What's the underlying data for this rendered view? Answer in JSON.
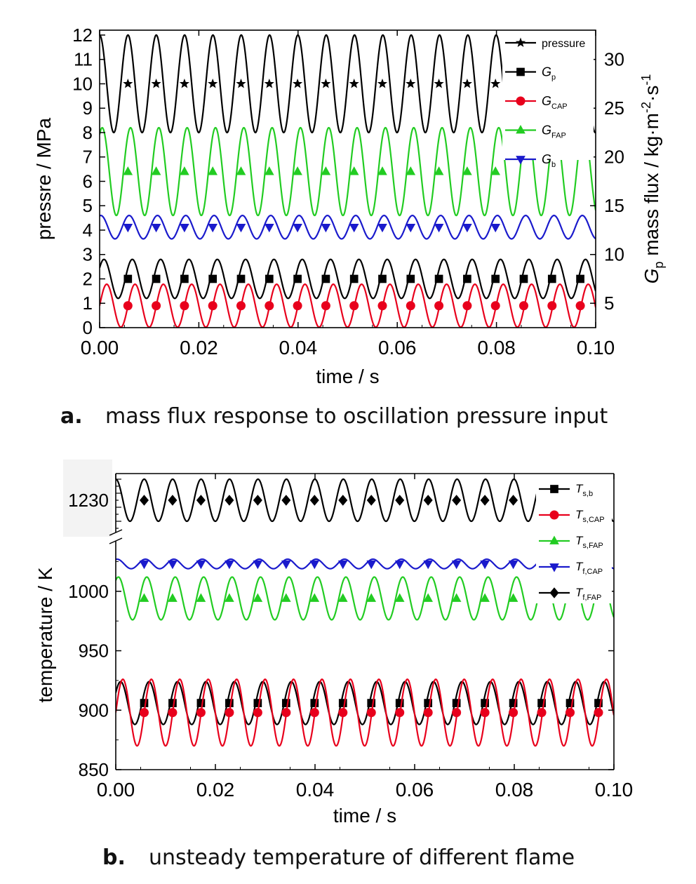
{
  "captions": {
    "a_letter": "a.",
    "a_text": "mass flux response to oscillation pressure input",
    "b_letter": "b.",
    "b_text": "unsteady temperature of different flame"
  },
  "chart_data": [
    {
      "type": "line",
      "panel": "a",
      "xlabel": "time / s",
      "ylabel": "pressre / MPa",
      "ylabel_right": "G",
      "ylabel_right_sub": "p",
      "ylabel_right_rest": " mass flux / kg·m",
      "ylabel_right_sup1": "-2",
      "ylabel_right_mid": "·s",
      "ylabel_right_sup2": "-1",
      "xlim": [
        0,
        0.1
      ],
      "ylim": [
        0,
        12.2
      ],
      "ylim_right": [
        2.5,
        33
      ],
      "x_ticks": [
        "0.00",
        "0.02",
        "0.04",
        "0.06",
        "0.08",
        "0.10"
      ],
      "y_ticks": [
        "0",
        "1",
        "2",
        "3",
        "4",
        "5",
        "6",
        "7",
        "8",
        "9",
        "10",
        "11",
        "12"
      ],
      "y_right_ticks": [
        "5",
        "10",
        "15",
        "20",
        "25",
        "30"
      ],
      "oscillation_period_s": 0.00571,
      "legend_position": "top-right",
      "series": [
        {
          "name": "pressure",
          "axis": "left",
          "color": "#000000",
          "marker": "star",
          "mean": 10.0,
          "amplitude": 2.0,
          "phase": 1.5708,
          "marker_start": 0.0057,
          "marker_step": 0.0057,
          "marker_end": 0.081
        },
        {
          "name": "G",
          "sub": "p",
          "axis": "right",
          "color": "#000000",
          "marker": "square",
          "mean": 7.5,
          "amplitude": 2.0,
          "phase": 0.6,
          "marker_start": 0.0057,
          "marker_step": 0.0057,
          "marker_end": 0.098
        },
        {
          "name": "G",
          "sub": "CAP",
          "axis": "right",
          "color": "#e8001c",
          "marker": "circle",
          "mean": 4.75,
          "amplitude": 2.2,
          "phase": 0.0,
          "marker_start": 0.0057,
          "marker_step": 0.0057,
          "marker_end": 0.098
        },
        {
          "name": "G",
          "sub": "FAP",
          "axis": "right",
          "color": "#22cc22",
          "marker": "triangle-up",
          "mean": 18.5,
          "amplitude": 4.5,
          "phase": 1.0,
          "marker_start": 0.0057,
          "marker_step": 0.0057,
          "marker_end": 0.081
        },
        {
          "name": "G",
          "sub": "b",
          "axis": "right",
          "color": "#1a1acc",
          "marker": "triangle-down",
          "mean": 12.8,
          "amplitude": 1.2,
          "phase": 1.3,
          "marker_start": 0.0057,
          "marker_step": 0.0057,
          "marker_end": 0.081
        }
      ]
    },
    {
      "type": "line",
      "panel": "b",
      "xlabel": "time / s",
      "ylabel": "temperature / K",
      "xlim": [
        0,
        0.1
      ],
      "ylim": [
        850,
        1040
      ],
      "y_axis_break_label": "1230",
      "x_ticks": [
        "0.00",
        "0.02",
        "0.04",
        "0.06",
        "0.08",
        "0.10"
      ],
      "y_ticks": [
        "850",
        "900",
        "950",
        "1000"
      ],
      "oscillation_period_s": 0.00571,
      "legend_position": "top-right",
      "series": [
        {
          "name": "T",
          "sub": "s,b",
          "color": "#000000",
          "marker": "square",
          "region": "lower",
          "mean": 906,
          "amplitude": 18,
          "phase": 0.5,
          "marker_start": 0.0057,
          "marker_step": 0.0057,
          "marker_end": 0.098
        },
        {
          "name": "T",
          "sub": "s,CAP",
          "color": "#e8001c",
          "marker": "circle",
          "region": "lower",
          "mean": 898,
          "amplitude": 28,
          "phase": 0.0,
          "marker_start": 0.0057,
          "marker_step": 0.0057,
          "marker_end": 0.098
        },
        {
          "name": "T",
          "sub": "s,FAP",
          "color": "#22cc22",
          "marker": "triangle-up",
          "region": "lower",
          "mean": 994,
          "amplitude": 18,
          "phase": 1.0,
          "marker_start": 0.0057,
          "marker_step": 0.0057,
          "marker_end": 0.081
        },
        {
          "name": "T",
          "sub": "f,CAP",
          "color": "#1a1acc",
          "marker": "triangle-down",
          "region": "lower",
          "mean": 1023,
          "amplitude": 4,
          "phase": 1.3,
          "marker_start": 0.0057,
          "marker_step": 0.0057,
          "marker_end": 0.081
        },
        {
          "name": "T",
          "sub": "f,FAP",
          "color": "#000000",
          "marker": "diamond",
          "region": "upper",
          "mean": 1230,
          "amplitude": 1.0,
          "phase": 1.5708,
          "marker_start": 0.0057,
          "marker_step": 0.0057,
          "marker_end": 0.081
        }
      ]
    }
  ]
}
